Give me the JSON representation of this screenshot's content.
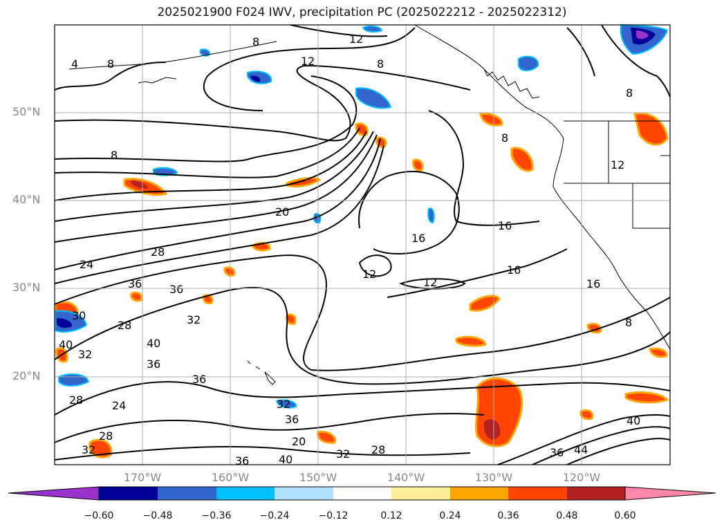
{
  "title": "2025021900 F024 IWV, precipitation PC (2025022212 - 2025022312)",
  "lat_labels": [
    "50°N",
    "40°N",
    "30°N",
    "20°N"
  ],
  "lon_labels": [
    "170°W",
    "160°W",
    "150°W",
    "140°W",
    "130°W",
    "120°W"
  ],
  "colorbar": {
    "ticks": [
      "−0.60",
      "−0.48",
      "−0.36",
      "−0.24",
      "−0.12",
      "0.12",
      "0.24",
      "0.36",
      "0.48",
      "0.60"
    ],
    "colors": [
      "#9933cc",
      "#000099",
      "#3366cc",
      "#00bfff",
      "#b0e0ff",
      "#ffffff",
      "#ffee99",
      "#ffa500",
      "#ff4500",
      "#b22222",
      "#ff88aa"
    ]
  },
  "contour_labels": [
    "12",
    "8",
    "12",
    "8",
    "8",
    "4",
    "8",
    "8",
    "20",
    "16",
    "16",
    "12",
    "12",
    "16",
    "28",
    "24",
    "36",
    "36",
    "32",
    "28",
    "40",
    "36",
    "36",
    "32",
    "28",
    "24",
    "28",
    "32",
    "30",
    "40",
    "32",
    "36",
    "20",
    "40",
    "32",
    "28",
    "36",
    "40",
    "36",
    "44",
    "16",
    "8",
    "8",
    "12"
  ]
}
